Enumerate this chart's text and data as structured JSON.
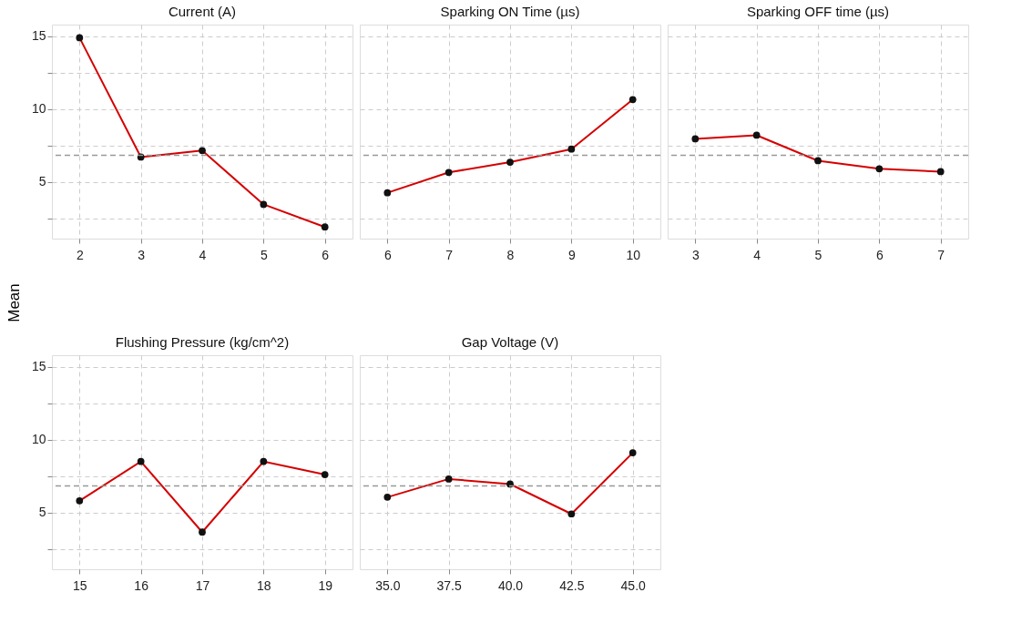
{
  "chart_data": [
    {
      "type": "line",
      "title": "Current (A)",
      "ylabel": "Mean",
      "x": [
        2,
        3,
        4,
        5,
        6
      ],
      "xlim": [
        1.55,
        6.45
      ],
      "xticks": [
        2,
        3,
        4,
        5,
        6
      ],
      "ylim": [
        1.1,
        15.8
      ],
      "yticks": [
        {
          "value": 2.5,
          "label": null
        },
        5,
        {
          "value": 7.5,
          "label": null
        },
        10,
        {
          "value": 12.5,
          "label": null
        },
        15
      ],
      "grid": true,
      "marker": "circle",
      "series": [
        {
          "color": "#d40000",
          "values": [
            14.9,
            6.7,
            7.15,
            3.45,
            1.9
          ]
        }
      ],
      "ref_lines": [
        {
          "axis": "y",
          "value": 6.82,
          "color": "#999999",
          "line_style": "dashed"
        }
      ]
    },
    {
      "type": "line",
      "title": "Sparking ON Time (µs)",
      "x": [
        6,
        7,
        8,
        9,
        10
      ],
      "xlim": [
        5.55,
        10.45
      ],
      "xticks": [
        6,
        7,
        8,
        9,
        10
      ],
      "ylim": [
        1.1,
        15.8
      ],
      "yticks": [
        {
          "value": 2.5,
          "label": null
        },
        5,
        {
          "value": 7.5,
          "label": null
        },
        10,
        {
          "value": 12.5,
          "label": null
        },
        15
      ],
      "grid": true,
      "marker": "circle",
      "tick_labels": "x",
      "series": [
        {
          "color": "#d40000",
          "values": [
            4.25,
            5.65,
            6.35,
            7.25,
            10.65
          ]
        }
      ],
      "ref_lines": [
        {
          "axis": "y",
          "value": 6.82,
          "color": "#999999",
          "line_style": "dashed"
        }
      ]
    },
    {
      "type": "line",
      "title": "Sparking OFF time (µs)",
      "x": [
        3,
        4,
        5,
        6,
        7
      ],
      "xlim": [
        2.55,
        7.45
      ],
      "xticks": [
        3,
        4,
        5,
        6,
        7
      ],
      "ylim": [
        1.1,
        15.8
      ],
      "yticks": [
        {
          "value": 2.5,
          "label": null
        },
        5,
        {
          "value": 7.5,
          "label": null
        },
        10,
        {
          "value": 12.5,
          "label": null
        },
        15
      ],
      "grid": true,
      "marker": "circle",
      "tick_labels": "x",
      "series": [
        {
          "color": "#d40000",
          "values": [
            7.95,
            8.2,
            6.45,
            5.9,
            5.7
          ]
        }
      ],
      "ref_lines": [
        {
          "axis": "y",
          "value": 6.82,
          "color": "#999999",
          "line_style": "dashed"
        }
      ]
    },
    {
      "type": "line",
      "title": "Flushing Pressure (kg/cm^2)",
      "x": [
        15,
        16,
        17,
        18,
        19
      ],
      "xlim": [
        14.55,
        19.45
      ],
      "xticks": [
        15,
        16,
        17,
        18,
        19
      ],
      "ylim": [
        1.1,
        15.8
      ],
      "yticks": [
        {
          "value": 2.5,
          "label": null
        },
        5,
        {
          "value": 7.5,
          "label": null
        },
        10,
        {
          "value": 12.5,
          "label": null
        },
        15
      ],
      "grid": true,
      "marker": "circle",
      "series": [
        {
          "color": "#d40000",
          "values": [
            5.8,
            8.5,
            3.65,
            8.5,
            7.6
          ]
        }
      ],
      "ref_lines": [
        {
          "axis": "y",
          "value": 6.82,
          "color": "#999999",
          "line_style": "dashed"
        }
      ]
    },
    {
      "type": "line",
      "title": "Gap Voltage (V)",
      "x": [
        35.0,
        37.5,
        40.0,
        42.5,
        45.0
      ],
      "xlim": [
        33.875,
        46.125
      ],
      "xticks": [
        {
          "value": 35,
          "label": "35.0"
        },
        37.5,
        {
          "value": 40,
          "label": "40.0"
        },
        42.5,
        {
          "value": 45,
          "label": "45.0"
        }
      ],
      "ylim": [
        1.1,
        15.8
      ],
      "yticks": [
        {
          "value": 2.5,
          "label": null
        },
        5,
        {
          "value": 7.5,
          "label": null
        },
        10,
        {
          "value": 12.5,
          "label": null
        },
        15
      ],
      "grid": true,
      "marker": "circle",
      "tick_labels": "x",
      "series": [
        {
          "color": "#d40000",
          "values": [
            6.05,
            7.3,
            6.95,
            4.9,
            9.1
          ]
        }
      ],
      "ref_lines": [
        {
          "axis": "y",
          "value": 6.82,
          "color": "#999999",
          "line_style": "dashed"
        }
      ]
    }
  ]
}
